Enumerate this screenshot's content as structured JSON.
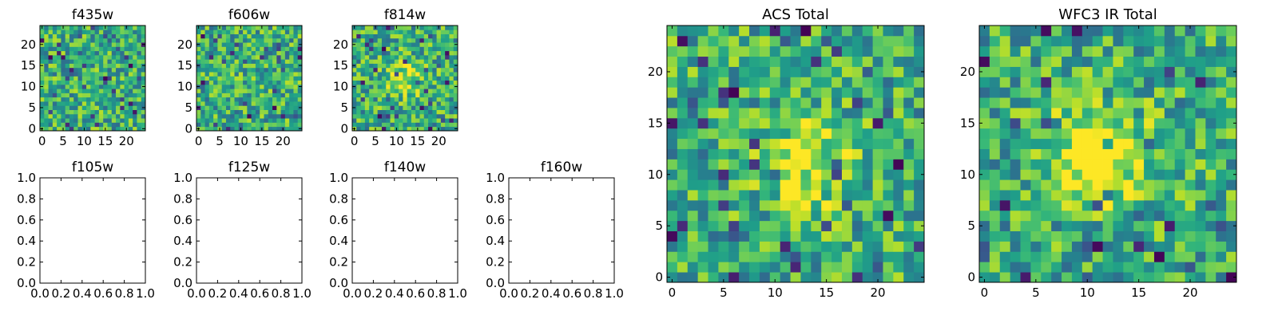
{
  "chart_data": [
    {
      "type": "heatmap",
      "title": "f435w",
      "xticks": [
        "0",
        "5",
        "10",
        "15",
        "20"
      ],
      "yticks": [
        "0",
        "5",
        "10",
        "15",
        "20"
      ],
      "xlim": [
        -0.5,
        24.5
      ],
      "ylim": [
        -0.5,
        24.5
      ],
      "grid_size": [
        25,
        25
      ],
      "colormap": "viridis",
      "image": "noise"
    },
    {
      "type": "heatmap",
      "title": "f606w",
      "xticks": [
        "0",
        "5",
        "10",
        "15",
        "20"
      ],
      "yticks": [
        "0",
        "5",
        "10",
        "15",
        "20"
      ],
      "xlim": [
        -0.5,
        24.5
      ],
      "ylim": [
        -0.5,
        24.5
      ],
      "grid_size": [
        25,
        25
      ],
      "colormap": "viridis",
      "image": "noise"
    },
    {
      "type": "heatmap",
      "title": "f814w",
      "xticks": [
        "0",
        "5",
        "10",
        "15",
        "20"
      ],
      "yticks": [
        "0",
        "5",
        "10",
        "15",
        "20"
      ],
      "xlim": [
        -0.5,
        24.5
      ],
      "ylim": [
        -0.5,
        24.5
      ],
      "grid_size": [
        25,
        25
      ],
      "colormap": "viridis",
      "image": "faint central source"
    },
    {
      "type": "heatmap",
      "title": "f105w",
      "xticks": [
        "0.0",
        "0.2",
        "0.4",
        "0.6",
        "0.8",
        "1.0"
      ],
      "yticks": [
        "0.0",
        "0.2",
        "0.4",
        "0.6",
        "0.8",
        "1.0"
      ],
      "xlim": [
        0,
        1
      ],
      "ylim": [
        0,
        1
      ],
      "image": "empty"
    },
    {
      "type": "heatmap",
      "title": "f125w",
      "xticks": [
        "0.0",
        "0.2",
        "0.4",
        "0.6",
        "0.8",
        "1.0"
      ],
      "yticks": [
        "0.0",
        "0.2",
        "0.4",
        "0.6",
        "0.8",
        "1.0"
      ],
      "xlim": [
        0,
        1
      ],
      "ylim": [
        0,
        1
      ],
      "image": "empty"
    },
    {
      "type": "heatmap",
      "title": "f140w",
      "xticks": [
        "0.0",
        "0.2",
        "0.4",
        "0.6",
        "0.8",
        "1.0"
      ],
      "yticks": [
        "0.0",
        "0.2",
        "0.4",
        "0.6",
        "0.8",
        "1.0"
      ],
      "xlim": [
        0,
        1
      ],
      "ylim": [
        0,
        1
      ],
      "image": "empty"
    },
    {
      "type": "heatmap",
      "title": "f160w",
      "xticks": [
        "0.0",
        "0.2",
        "0.4",
        "0.6",
        "0.8",
        "1.0"
      ],
      "yticks": [
        "0.0",
        "0.2",
        "0.4",
        "0.6",
        "0.8",
        "1.0"
      ],
      "xlim": [
        0,
        1
      ],
      "ylim": [
        0,
        1
      ],
      "image": "empty"
    },
    {
      "type": "heatmap",
      "title": "ACS Total",
      "xticks": [
        "0",
        "5",
        "10",
        "15",
        "20"
      ],
      "yticks": [
        "0",
        "5",
        "10",
        "15",
        "20"
      ],
      "xlim": [
        -0.5,
        24.5
      ],
      "ylim": [
        -0.5,
        24.5
      ],
      "grid_size": [
        25,
        25
      ],
      "colormap": "viridis",
      "image": "noisy field, bright centre near (13, 11)"
    },
    {
      "type": "heatmap",
      "title": "WFC3 IR Total",
      "xticks": [
        "0",
        "5",
        "10",
        "15",
        "20"
      ],
      "yticks": [
        "0",
        "5",
        "10",
        "15",
        "20"
      ],
      "xlim": [
        -0.5,
        24.5
      ],
      "ylim": [
        -0.5,
        24.5
      ],
      "grid_size": [
        25,
        25
      ],
      "colormap": "viridis",
      "image": "bright source centred near (11, 12)"
    }
  ]
}
